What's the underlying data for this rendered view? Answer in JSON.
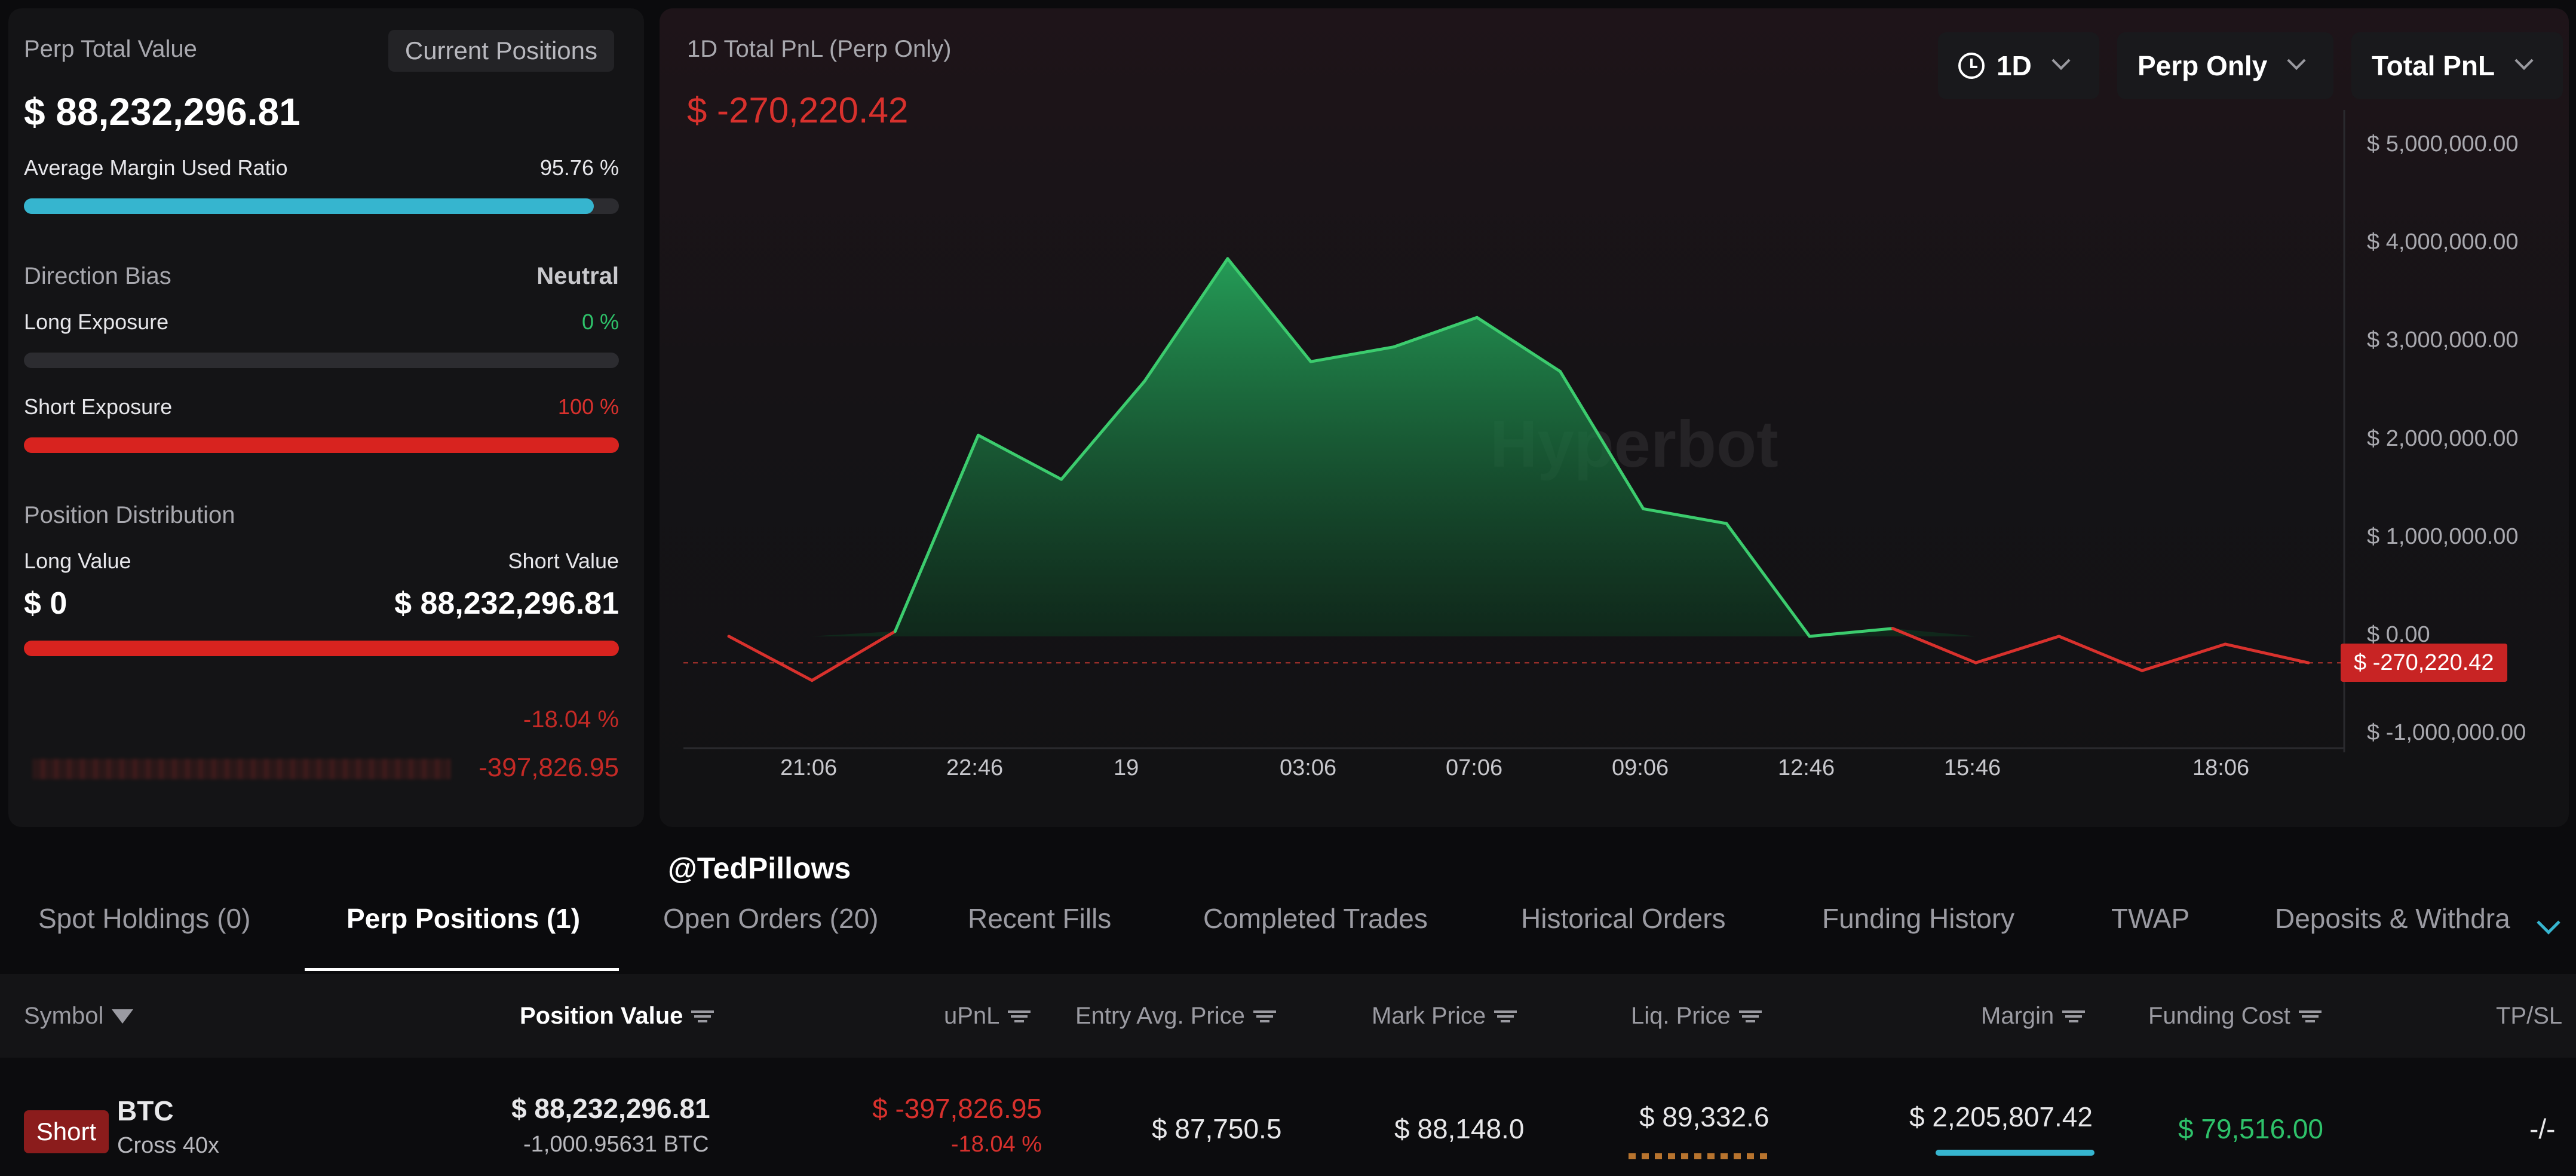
{
  "summary": {
    "title": "Perp Total Value",
    "positions_button": "Current Positions",
    "total_value": "$ 88,232,296.81",
    "margin_label": "Average Margin Used Ratio",
    "margin_value": "95.76 %",
    "margin_ratio": 0.9576,
    "direction_label": "Direction Bias",
    "direction_value": "Neutral",
    "long_exposure_label": "Long Exposure",
    "long_exposure_value": "0 %",
    "long_exposure_ratio": 0,
    "short_exposure_label": "Short Exposure",
    "short_exposure_value": "100 %",
    "short_exposure_ratio": 1,
    "distribution_label": "Position Distribution",
    "long_value_label": "Long Value",
    "short_value_label": "Short Value",
    "long_value": "$ 0",
    "short_value": "$ 88,232,296.81",
    "pnl_pct": "-18.04 %",
    "pnl_value": "-397,826.95"
  },
  "chart": {
    "title": "1D Total PnL (Perp Only)",
    "total_pnl": "$ -270,220.42",
    "current_label": "$ -270,220.42",
    "dropdowns": {
      "period": "1D",
      "scope": "Perp Only",
      "metric": "Total PnL"
    },
    "watermark": "Hyperbot"
  },
  "chart_data": {
    "type": "area",
    "title": "1D Total PnL (Perp Only)",
    "x_ticks": [
      "21:06",
      "22:46",
      "19",
      "03:06",
      "07:06",
      "09:06",
      "12:46",
      "15:46",
      "18:06"
    ],
    "y_ticks": [
      "$ 5,000,000.00",
      "$ 4,000,000.00",
      "$ 3,000,000.00",
      "$ 2,000,000.00",
      "$ 1,000,000.00",
      "$ 0.00",
      "$ -1,000,000.00"
    ],
    "ylim": [
      -1000000,
      5000000
    ],
    "series": [
      {
        "values": [
          0,
          -450000,
          50000,
          2050000,
          1600000,
          2600000,
          3850000,
          2800000,
          2950000,
          3250000,
          2700000,
          1300000,
          1150000,
          0,
          80000,
          -270000,
          0,
          -350000,
          -80000,
          -270220
        ]
      }
    ],
    "current_value": -270220.42,
    "colors": {
      "positive": "#3ccc6e",
      "negative": "#d8312d"
    }
  },
  "watermark_handle": "@TedPillows",
  "tabs": [
    {
      "label": "Spot Holdings (0)"
    },
    {
      "label": "Perp Positions (1)"
    },
    {
      "label": "Open Orders (20)"
    },
    {
      "label": "Recent Fills"
    },
    {
      "label": "Completed Trades"
    },
    {
      "label": "Historical Orders"
    },
    {
      "label": "Funding History"
    },
    {
      "label": "TWAP"
    },
    {
      "label": "Deposits & Withdra"
    }
  ],
  "table": {
    "headers": {
      "symbol": "Symbol",
      "position_value": "Position Value",
      "upnl": "uPnL",
      "entry": "Entry Avg. Price",
      "mark": "Mark Price",
      "liq": "Liq. Price",
      "margin": "Margin",
      "funding": "Funding Cost",
      "tpsl": "TP/SL"
    },
    "row": {
      "side": "Short",
      "symbol": "BTC",
      "mode": "Cross 40x",
      "position_value": "$ 88,232,296.81",
      "position_size": "-1,000.95631 BTC",
      "upnl": "$ -397,826.95",
      "upnl_pct": "-18.04 %",
      "entry": "$ 87,750.5",
      "mark": "$ 88,148.0",
      "liq": "$ 89,332.6",
      "margin": "$ 2,205,807.42",
      "funding": "$ 79,516.00",
      "tpsl": "-/-"
    }
  }
}
